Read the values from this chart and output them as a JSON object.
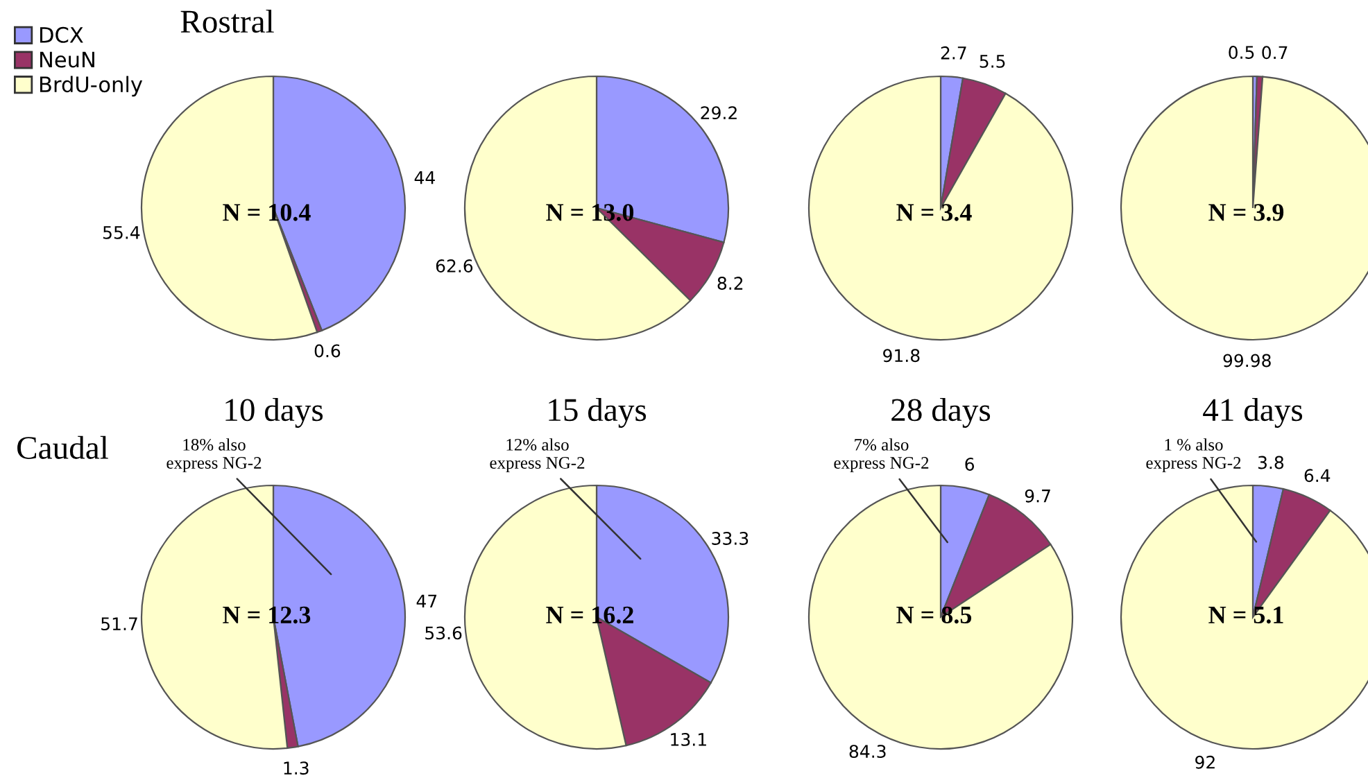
{
  "chart_data": [
    {
      "type": "pie",
      "title": "Rostral",
      "categories": [
        "DCX",
        "NeuN",
        "BrdU-only"
      ],
      "values": [
        44,
        0.6,
        55.4
      ],
      "colors": [
        "#9999ff",
        "#993366",
        "#ffffcc"
      ],
      "data_labels": true,
      "legend": "top left",
      "annotations": [
        "N = 10.4"
      ]
    },
    {
      "type": "pie",
      "categories": [
        null,
        null,
        null
      ],
      "values": [
        29.2,
        8.2,
        62.6
      ],
      "colors": [
        "#9999ff",
        "#993366",
        "#ffffcc"
      ],
      "data_labels": true,
      "annotations": [
        "N = 13.0"
      ]
    },
    {
      "type": "pie",
      "categories": [
        null,
        null,
        null
      ],
      "values": [
        2.7,
        5.5,
        91.8
      ],
      "colors": [
        "#9999ff",
        "#993366",
        "#ffffcc"
      ],
      "data_labels": true,
      "annotations": [
        "N = 3.4"
      ]
    },
    {
      "type": "pie",
      "categories": [
        null,
        null,
        null
      ],
      "values": [
        0.5,
        0.7,
        99.98
      ],
      "colors": [
        "#9999ff",
        "#993366",
        "#ffffcc"
      ],
      "data_labels": true,
      "annotations": [
        "N = 3.9"
      ]
    },
    {
      "type": "pie",
      "title": "10 days",
      "categories": [
        null,
        null,
        null
      ],
      "values": [
        47,
        1.3,
        51.7
      ],
      "colors": [
        "#9999ff",
        "#993366",
        "#ffffcc"
      ],
      "data_labels": true,
      "annotations": [
        "Caudal",
        "18% also\nexpress NG-2",
        "N = 12.3"
      ]
    },
    {
      "type": "pie",
      "title": "15 days",
      "categories": [
        null,
        null,
        null
      ],
      "values": [
        33.3,
        13.1,
        53.6
      ],
      "colors": [
        "#9999ff",
        "#993366",
        "#ffffcc"
      ],
      "data_labels": true,
      "annotations": [
        "12% also\nexpress NG-2",
        "N = 16.2"
      ]
    },
    {
      "type": "pie",
      "title": "28 days",
      "categories": [
        null,
        null,
        null
      ],
      "values": [
        6,
        9.7,
        84.3
      ],
      "colors": [
        "#9999ff",
        "#993366",
        "#ffffcc"
      ],
      "data_labels": true,
      "annotations": [
        "7% also\nexpress NG-2",
        "N = 8.5"
      ]
    },
    {
      "type": "pie",
      "title": "41 days",
      "categories": [
        null,
        null,
        null
      ],
      "values": [
        3.8,
        6.4,
        92
      ],
      "colors": [
        "#9999ff",
        "#993366",
        "#ffffcc"
      ],
      "data_labels": true,
      "annotations": [
        "1 % also\nexpress NG-2",
        "N = 5.1"
      ]
    }
  ]
}
